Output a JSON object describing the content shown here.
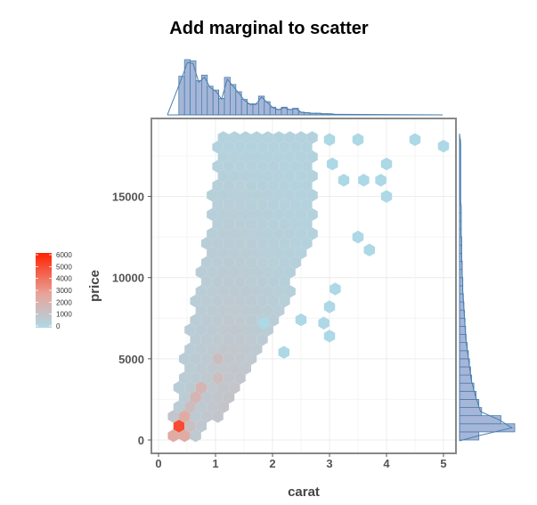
{
  "chart_data": {
    "type": "hexbin",
    "title": "Add marginal to scatter",
    "xlabel": "carat",
    "ylabel": "price",
    "xlim": [
      0,
      5.1
    ],
    "ylim": [
      -300,
      19000
    ],
    "x_ticks": [
      "0",
      "1",
      "2",
      "3",
      "4",
      "5"
    ],
    "y_ticks": [
      "0",
      "5000",
      "10000",
      "15000"
    ],
    "grid": true,
    "legend": {
      "placement": "left",
      "ticks": [
        "6000",
        "5000",
        "4000",
        "3000",
        "2000",
        "1000",
        "0"
      ],
      "color_low": "#add8e6",
      "color_high": "#ff2200"
    },
    "density_points": [
      {
        "carat": 0.3,
        "price": 700,
        "count": 6000
      },
      {
        "carat": 0.35,
        "price": 1000,
        "count": 5500
      },
      {
        "carat": 0.42,
        "price": 600,
        "count": 4500
      },
      {
        "carat": 0.5,
        "price": 1300,
        "count": 3800
      },
      {
        "carat": 0.55,
        "price": 1600,
        "count": 3000
      },
      {
        "carat": 0.7,
        "price": 2700,
        "count": 3000
      },
      {
        "carat": 0.75,
        "price": 3200,
        "count": 2200
      },
      {
        "carat": 1.0,
        "price": 4000,
        "count": 2300
      },
      {
        "carat": 1.02,
        "price": 4800,
        "count": 2000
      },
      {
        "carat": 1.05,
        "price": 5600,
        "count": 1500
      },
      {
        "carat": 1.2,
        "price": 5500,
        "count": 1000
      },
      {
        "carat": 1.5,
        "price": 7500,
        "count": 800
      }
    ],
    "outlier_points": [
      {
        "carat": 3.0,
        "price": 18500
      },
      {
        "carat": 3.5,
        "price": 18500
      },
      {
        "carat": 4.5,
        "price": 18500
      },
      {
        "carat": 5.0,
        "price": 18100
      },
      {
        "carat": 4.0,
        "price": 17000
      },
      {
        "carat": 3.05,
        "price": 17000
      },
      {
        "carat": 3.25,
        "price": 16000
      },
      {
        "carat": 3.6,
        "price": 16000
      },
      {
        "carat": 3.9,
        "price": 16000
      },
      {
        "carat": 4.0,
        "price": 15000
      },
      {
        "carat": 3.5,
        "price": 12500
      },
      {
        "carat": 3.7,
        "price": 11700
      },
      {
        "carat": 3.1,
        "price": 9300
      },
      {
        "carat": 3.0,
        "price": 8200
      },
      {
        "carat": 3.0,
        "price": 6400
      },
      {
        "carat": 2.9,
        "price": 7200
      },
      {
        "carat": 2.5,
        "price": 7400
      },
      {
        "carat": 2.2,
        "price": 5400
      },
      {
        "carat": 1.85,
        "price": 7200
      }
    ],
    "marginal_x_histogram": {
      "bin_width": 0.1,
      "bins_start": 0.2,
      "relative_heights": [
        0.7,
        1.0,
        0.98,
        0.62,
        0.72,
        0.52,
        0.45,
        0.3,
        0.68,
        0.55,
        0.42,
        0.28,
        0.2,
        0.2,
        0.34,
        0.24,
        0.14,
        0.1,
        0.14,
        0.1,
        0.12,
        0.05,
        0.04,
        0.03,
        0.03,
        0.02,
        0.02,
        0.01
      ]
    },
    "marginal_y_histogram": {
      "bin_width": 500,
      "bins_start": 0,
      "relative_heights": [
        0.35,
        1.0,
        0.75,
        0.4,
        0.35,
        0.3,
        0.26,
        0.22,
        0.2,
        0.18,
        0.16,
        0.14,
        0.12,
        0.11,
        0.1,
        0.09,
        0.08,
        0.07,
        0.06,
        0.06,
        0.05,
        0.05,
        0.04,
        0.04,
        0.04,
        0.03,
        0.03,
        0.03,
        0.03,
        0.02,
        0.02,
        0.02,
        0.02,
        0.02,
        0.02,
        0.02,
        0.02
      ]
    }
  },
  "colors": {
    "hex_base": "#add8e6",
    "hex_hot": "#ff2200",
    "marginal_fill": "#a6b6d8",
    "marginal_line": "#4a7fae",
    "panel_border": "#888888",
    "grid": "#ececec"
  }
}
